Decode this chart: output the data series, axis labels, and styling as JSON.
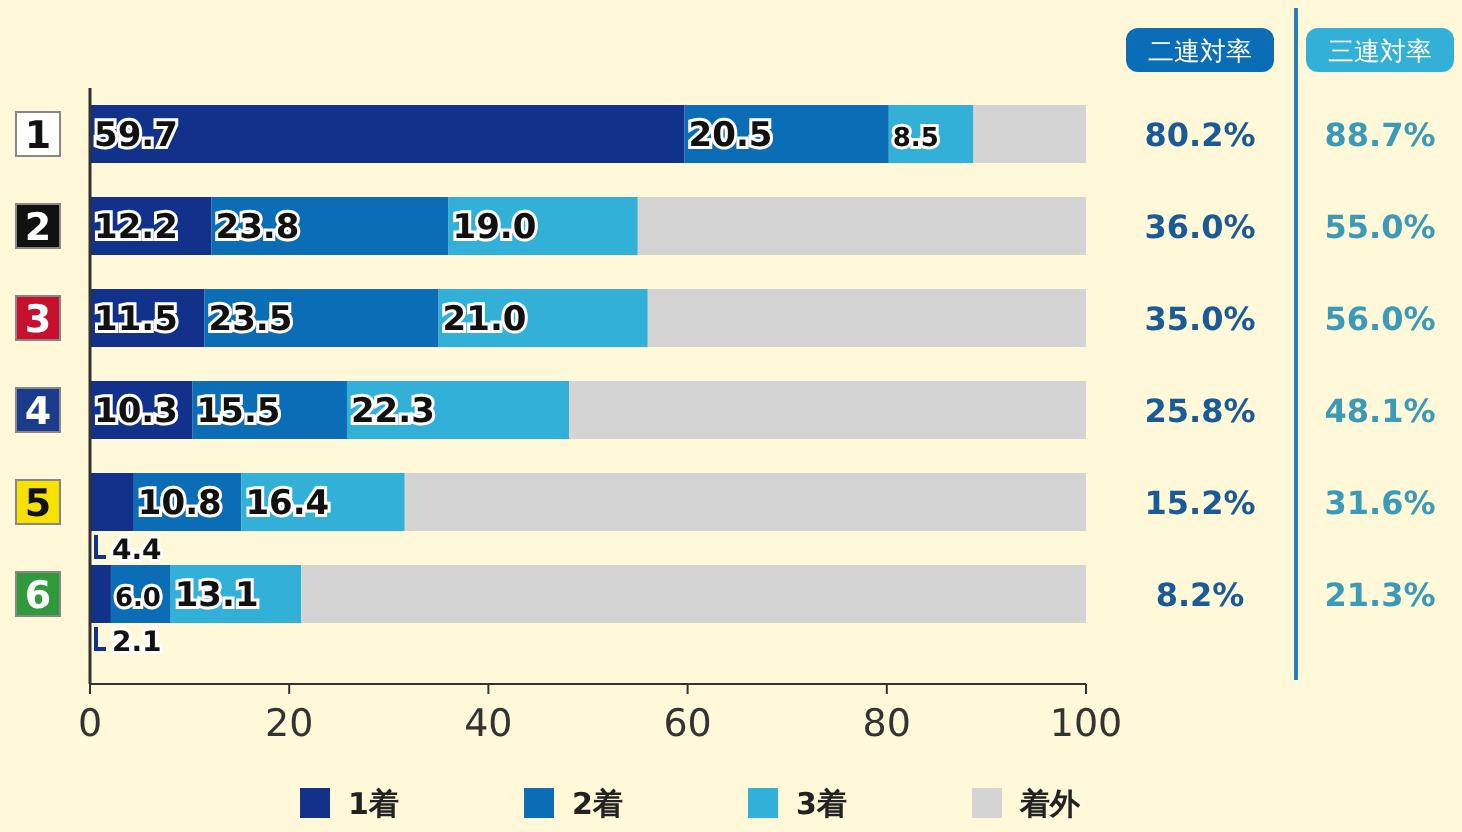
{
  "chart_data": {
    "type": "bar",
    "orientation": "horizontal",
    "stacked": true,
    "categories": [
      "1",
      "2",
      "3",
      "4",
      "5",
      "6"
    ],
    "series": [
      {
        "name": "1着",
        "color": "#11318a",
        "values": [
          59.7,
          12.2,
          11.5,
          10.3,
          4.4,
          2.1
        ],
        "value_labels": [
          "59.7",
          "12.2",
          "11.5",
          "10.3",
          "4.4",
          "2.1"
        ]
      },
      {
        "name": "2着",
        "color": "#0b6db5",
        "values": [
          20.5,
          23.8,
          23.5,
          15.5,
          10.8,
          6.0
        ],
        "value_labels": [
          "20.5",
          "23.8",
          "23.5",
          "15.5",
          "10.8",
          "6.0"
        ]
      },
      {
        "name": "3着",
        "color": "#33b0d8",
        "values": [
          8.5,
          19.0,
          21.0,
          22.3,
          16.4,
          13.1
        ],
        "value_labels": [
          "8.5",
          "19.0",
          "21.0",
          "22.3",
          "16.4",
          "13.1"
        ]
      },
      {
        "name": "着外",
        "color": "#d4d4d4",
        "values": [
          11.3,
          45.0,
          44.0,
          51.9,
          68.4,
          78.8
        ]
      }
    ],
    "xlim": [
      0,
      100
    ],
    "xticks": [
      0,
      20,
      40,
      60,
      80,
      100
    ],
    "legend": "bottom",
    "annotations": [
      "二連対率",
      "三連対率",
      "80.2%",
      "88.7%",
      "36.0%",
      "55.0%",
      "35.0%",
      "56.0%",
      "25.8%",
      "48.1%",
      "15.2%",
      "31.6%",
      "8.2%",
      "21.3%"
    ]
  }
}
